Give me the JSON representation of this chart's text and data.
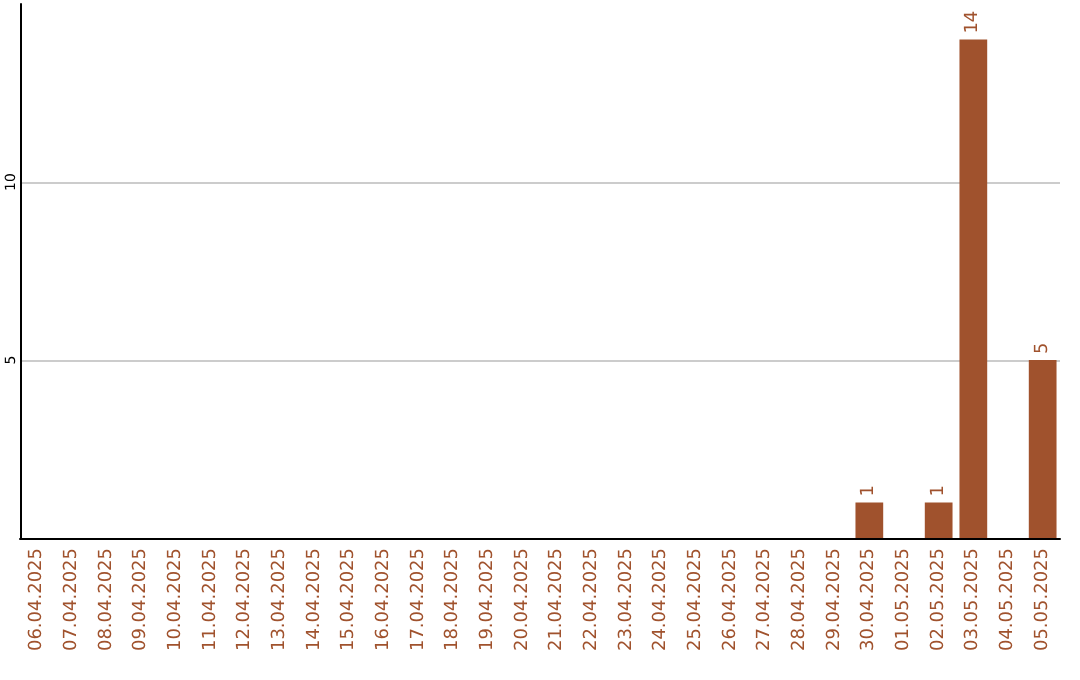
{
  "chart_data": {
    "type": "bar",
    "categories": [
      "06.04.2025",
      "07.04.2025",
      "08.04.2025",
      "09.04.2025",
      "10.04.2025",
      "11.04.2025",
      "12.04.2025",
      "13.04.2025",
      "14.04.2025",
      "15.04.2025",
      "16.04.2025",
      "17.04.2025",
      "18.04.2025",
      "19.04.2025",
      "20.04.2025",
      "21.04.2025",
      "22.04.2025",
      "23.04.2025",
      "24.04.2025",
      "25.04.2025",
      "26.04.2025",
      "27.04.2025",
      "28.04.2025",
      "29.04.2025",
      "30.04.2025",
      "01.05.2025",
      "02.05.2025",
      "03.05.2025",
      "04.05.2025",
      "05.05.2025"
    ],
    "values": [
      0,
      0,
      0,
      0,
      0,
      0,
      0,
      0,
      0,
      0,
      0,
      0,
      0,
      0,
      0,
      0,
      0,
      0,
      0,
      0,
      0,
      0,
      0,
      0,
      1,
      0,
      1,
      14,
      0,
      5
    ],
    "value_labels": [
      null,
      null,
      null,
      null,
      null,
      null,
      null,
      null,
      null,
      null,
      null,
      null,
      null,
      null,
      null,
      null,
      null,
      null,
      null,
      null,
      null,
      null,
      null,
      null,
      "1",
      null,
      "1",
      "14",
      null,
      "5"
    ],
    "color": "#a0522d",
    "ylim": [
      0,
      15
    ],
    "yticks": [
      5,
      10
    ],
    "grid": "y"
  }
}
